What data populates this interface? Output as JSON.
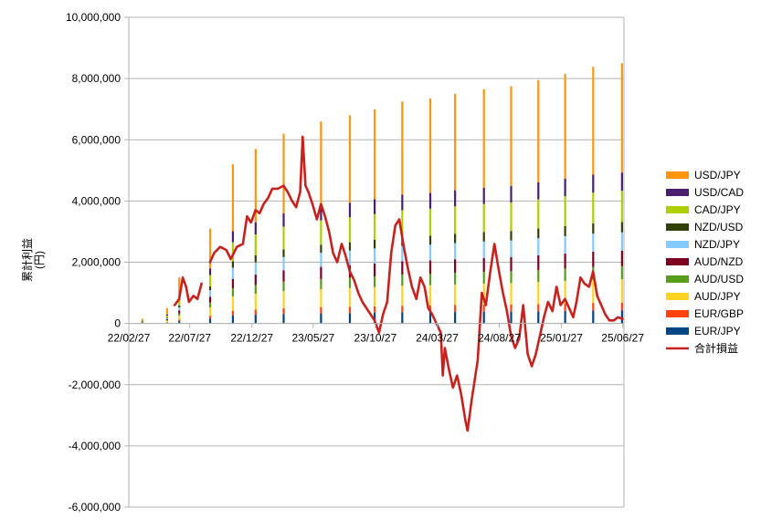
{
  "chart_data": {
    "type": "bar",
    "subtype": "stacked bar with line overlay",
    "ylabel": "累計利益\n(円)",
    "ylim": [
      -6000000,
      10000000
    ],
    "y_ticks": [
      -6000000,
      -4000000,
      -2000000,
      0,
      2000000,
      4000000,
      6000000,
      8000000,
      10000000
    ],
    "y_tick_labels": [
      "-6,000,000",
      "-4,000,000",
      "-2,000,000",
      "0",
      "2,000,000",
      "4,000,000",
      "6,000,000",
      "8,000,000",
      "10,000,000"
    ],
    "x_tick_labels": [
      "22/02/27",
      "22/07/27",
      "22/12/27",
      "23/05/27",
      "23/10/27",
      "24/03/27",
      "24/08/27",
      "25/01/27",
      "25/06/27"
    ],
    "grid": "horizontal major gridlines",
    "legend_position": "right",
    "bar_series": [
      {
        "name": "USD/JPY",
        "color": "#FF950E"
      },
      {
        "name": "USD/CAD",
        "color": "#4B1F6F"
      },
      {
        "name": "CAD/JPY",
        "color": "#AECF00"
      },
      {
        "name": "NZD/USD",
        "color": "#314004"
      },
      {
        "name": "NZD/JPY",
        "color": "#83CAFF"
      },
      {
        "name": "AUD/NZD",
        "color": "#7E0021"
      },
      {
        "name": "AUD/USD",
        "color": "#579D1C"
      },
      {
        "name": "AUD/JPY",
        "color": "#FFD320"
      },
      {
        "name": "EUR/GBP",
        "color": "#FF420E"
      },
      {
        "name": "EUR/JPY",
        "color": "#004586"
      }
    ],
    "stacked_totals": [
      {
        "x": "22/04/01",
        "value": 150000
      },
      {
        "x": "22/06/01",
        "value": 500000
      },
      {
        "x": "22/07/01",
        "value": 1500000
      },
      {
        "x": "22/09/15",
        "value": 3100000
      },
      {
        "x": "22/11/10",
        "value": 5200000
      },
      {
        "x": "23/01/05",
        "value": 5700000
      },
      {
        "x": "23/03/15",
        "value": 6200000
      },
      {
        "x": "23/06/15",
        "value": 6600000
      },
      {
        "x": "23/08/25",
        "value": 6800000
      },
      {
        "x": "23/10/25",
        "value": 7000000
      },
      {
        "x": "24/01/01",
        "value": 7250000
      },
      {
        "x": "24/03/10",
        "value": 7350000
      },
      {
        "x": "24/05/10",
        "value": 7500000
      },
      {
        "x": "24/07/20",
        "value": 7650000
      },
      {
        "x": "24/09/25",
        "value": 7750000
      },
      {
        "x": "24/12/01",
        "value": 7950000
      },
      {
        "x": "25/02/05",
        "value": 8150000
      },
      {
        "x": "25/04/15",
        "value": 8380000
      },
      {
        "x": "25/06/25",
        "value": 8500000
      }
    ],
    "line_series": {
      "name": "合計損益",
      "color": "#C9211E",
      "segments": [
        [
          [
            "22/06/20",
            600000
          ],
          [
            "22/07/01",
            800000
          ],
          [
            "22/07/10",
            1500000
          ],
          [
            "22/07/18",
            1200000
          ],
          [
            "22/07/25",
            700000
          ],
          [
            "22/08/05",
            900000
          ],
          [
            "22/08/15",
            800000
          ],
          [
            "22/08/25",
            1300000
          ]
        ],
        [
          [
            "22/09/15",
            2000000
          ],
          [
            "22/09/25",
            2300000
          ],
          [
            "22/10/10",
            2500000
          ],
          [
            "22/10/25",
            2400000
          ],
          [
            "22/11/05",
            2100000
          ],
          [
            "22/11/20",
            2500000
          ],
          [
            "22/12/05",
            2600000
          ],
          [
            "22/12/15",
            3500000
          ],
          [
            "22/12/25",
            3300000
          ],
          [
            "23/01/05",
            3700000
          ],
          [
            "23/01/15",
            3600000
          ],
          [
            "23/01/25",
            3900000
          ],
          [
            "23/02/05",
            4100000
          ],
          [
            "23/02/15",
            4400000
          ],
          [
            "23/03/01",
            4400000
          ],
          [
            "23/03/15",
            4500000
          ],
          [
            "23/03/25",
            4300000
          ],
          [
            "23/04/05",
            4000000
          ],
          [
            "23/04/15",
            3800000
          ],
          [
            "23/04/25",
            4300000
          ],
          [
            "23/05/01",
            6100000
          ],
          [
            "23/05/08",
            4500000
          ],
          [
            "23/05/15",
            4300000
          ],
          [
            "23/05/25",
            3900000
          ],
          [
            "23/06/05",
            3400000
          ],
          [
            "23/06/15",
            3900000
          ],
          [
            "23/06/25",
            3500000
          ],
          [
            "23/07/05",
            3000000
          ],
          [
            "23/07/15",
            2300000
          ],
          [
            "23/07/25",
            2000000
          ],
          [
            "23/08/05",
            2600000
          ],
          [
            "23/08/15",
            2200000
          ],
          [
            "23/08/25",
            1700000
          ],
          [
            "23/09/05",
            1400000
          ],
          [
            "23/09/15",
            1000000
          ],
          [
            "23/09/25",
            700000
          ],
          [
            "23/10/05",
            500000
          ],
          [
            "23/10/15",
            300000
          ],
          [
            "23/10/25",
            100000
          ],
          [
            "23/11/05",
            -300000
          ],
          [
            "23/11/15",
            300000
          ],
          [
            "23/11/25",
            700000
          ],
          [
            "23/12/05",
            2300000
          ],
          [
            "23/12/15",
            3200000
          ],
          [
            "23/12/25",
            3400000
          ],
          [
            "24/01/05",
            2500000
          ],
          [
            "24/01/15",
            1800000
          ],
          [
            "24/01/25",
            1200000
          ],
          [
            "24/02/05",
            800000
          ],
          [
            "24/02/15",
            1500000
          ],
          [
            "24/02/25",
            1200000
          ],
          [
            "24/03/05",
            500000
          ],
          [
            "24/03/15",
            300000
          ],
          [
            "24/03/25",
            0
          ],
          [
            "24/04/05",
            -300000
          ],
          [
            "24/04/10",
            -1700000
          ],
          [
            "24/04/15",
            -800000
          ],
          [
            "24/04/25",
            -1500000
          ],
          [
            "24/05/05",
            -2100000
          ],
          [
            "24/05/15",
            -1700000
          ],
          [
            "24/05/25",
            -2300000
          ],
          [
            "24/06/05",
            -3200000
          ],
          [
            "24/06/10",
            -3500000
          ],
          [
            "24/06/20",
            -2500000
          ],
          [
            "24/07/05",
            -1200000
          ],
          [
            "24/07/15",
            1000000
          ],
          [
            "24/07/25",
            600000
          ],
          [
            "24/08/05",
            1700000
          ],
          [
            "24/08/15",
            2600000
          ],
          [
            "24/08/25",
            1800000
          ],
          [
            "24/09/05",
            1000000
          ],
          [
            "24/09/15",
            400000
          ],
          [
            "24/09/25",
            -400000
          ],
          [
            "24/10/05",
            -800000
          ],
          [
            "24/10/15",
            -500000
          ],
          [
            "24/10/25",
            600000
          ],
          [
            "24/11/05",
            -1000000
          ],
          [
            "24/11/15",
            -1400000
          ],
          [
            "24/11/25",
            -1000000
          ],
          [
            "24/12/05",
            -400000
          ],
          [
            "24/12/15",
            200000
          ],
          [
            "24/12/25",
            700000
          ],
          [
            "25/01/05",
            400000
          ],
          [
            "25/01/15",
            1200000
          ],
          [
            "25/01/25",
            600000
          ],
          [
            "25/02/05",
            800000
          ],
          [
            "25/02/15",
            500000
          ],
          [
            "25/02/25",
            200000
          ],
          [
            "25/03/05",
            700000
          ],
          [
            "25/03/15",
            1500000
          ],
          [
            "25/03/25",
            1300000
          ],
          [
            "25/04/05",
            1200000
          ],
          [
            "25/04/15",
            1700000
          ],
          [
            "25/04/25",
            900000
          ],
          [
            "25/05/05",
            600000
          ],
          [
            "25/05/15",
            300000
          ],
          [
            "25/05/25",
            100000
          ],
          [
            "25/06/05",
            100000
          ],
          [
            "25/06/15",
            200000
          ],
          [
            "25/06/27",
            150000
          ]
        ]
      ]
    }
  }
}
